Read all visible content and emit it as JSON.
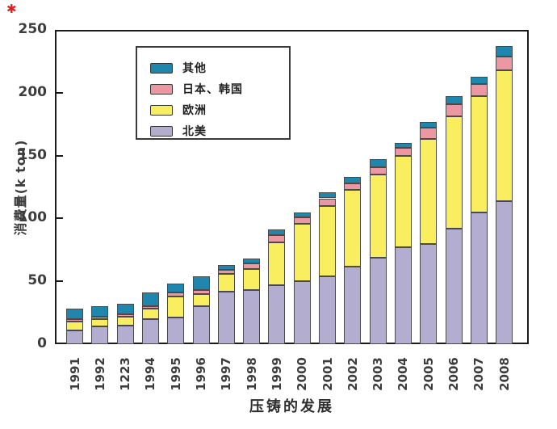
{
  "watermark": {
    "glyph": "✱"
  },
  "chart_data": {
    "type": "bar",
    "stacked": true,
    "title": "",
    "xlabel": "压铸的发展",
    "ylabel": "消费量(k ton)",
    "ylim": [
      0,
      250
    ],
    "yticks": [
      0,
      50,
      100,
      150,
      200,
      250
    ],
    "grid": false,
    "legend_position": "upper-left-inside",
    "categories": [
      "1991",
      "1992",
      "1223",
      "1994",
      "1995",
      "1996",
      "1997",
      "1998",
      "1999",
      "2000",
      "2001",
      "2002",
      "2003",
      "2004",
      "2005",
      "2006",
      "2007",
      "2008"
    ],
    "series": [
      {
        "name": "北美",
        "color": "#b3aed0",
        "values": [
          11,
          14,
          15,
          20,
          21,
          30,
          42,
          43,
          47,
          50,
          54,
          62,
          69,
          77,
          80,
          92,
          105,
          114
        ]
      },
      {
        "name": "欧洲",
        "color": "#f8ee60",
        "values": [
          7,
          6,
          7,
          8,
          17,
          10,
          14,
          17,
          34,
          46,
          56,
          61,
          66,
          73,
          83,
          89,
          92,
          104
        ]
      },
      {
        "name": "日本、韩国",
        "color": "#ec98a2",
        "values": [
          2,
          2,
          2,
          2,
          3,
          3,
          3,
          4,
          6,
          5,
          6,
          5,
          6,
          6,
          9,
          10,
          10,
          11
        ]
      },
      {
        "name": "其他",
        "color": "#1f87ad",
        "values": [
          8,
          8,
          8,
          11,
          7,
          11,
          4,
          4,
          4,
          4,
          5,
          5,
          6,
          4,
          5,
          6,
          6,
          8
        ]
      }
    ],
    "legend": [
      {
        "label": "其他",
        "color": "#1f87ad"
      },
      {
        "label": "日本、韩国",
        "color": "#ec98a2"
      },
      {
        "label": "欧洲",
        "color": "#f8ee60"
      },
      {
        "label": "北美",
        "color": "#b3aed0"
      }
    ],
    "colors": {
      "axis": "#1b1b1b",
      "tick_text": "#3d3d3d",
      "bar_edge": "#4a4a4a",
      "watermark_red": "#dd1f1f"
    }
  }
}
